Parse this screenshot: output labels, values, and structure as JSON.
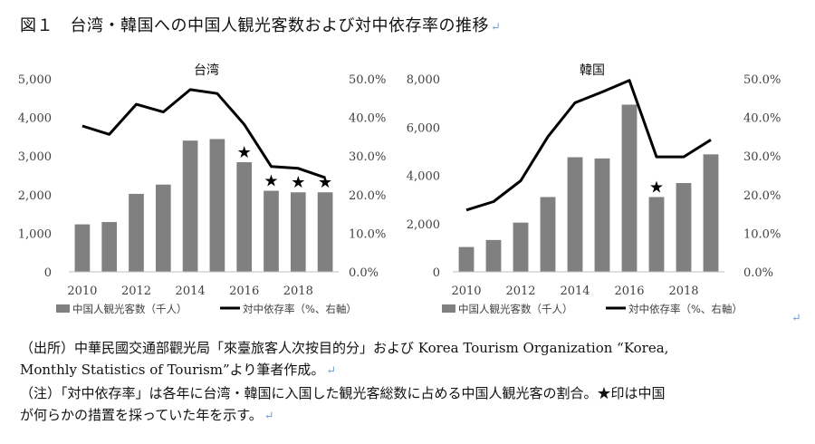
{
  "figure": {
    "title": "図１　台湾・韓国への中国人観光客数および対中依存率の推移",
    "return_mark": "↵"
  },
  "notes": {
    "source_line1": "（出所）中華民國交通部觀光局「來臺旅客人次按目的分」および Korea Tourism Organization “Korea,",
    "source_line2": "Monthly Statistics of Tourism”より筆者作成。",
    "note_line1": "（注）「対中依存率」は各年に台湾・韓国に入国した観光客総数に占める中国人観光客の割合。★印は中国",
    "note_line2": "が何らかの措置を採っていた年を示す。"
  },
  "colors": {
    "bar": "#808080",
    "line": "#000000",
    "text": "#404040"
  },
  "chart_data": [
    {
      "type": "bar+line",
      "title": "台湾",
      "x": [
        2010,
        2011,
        2012,
        2013,
        2014,
        2015,
        2016,
        2017,
        2018,
        2019
      ],
      "xticks": [
        "2010",
        "2012",
        "2014",
        "2016",
        "2018"
      ],
      "y_left_ticks": [
        "0",
        "1,000",
        "2,000",
        "3,000",
        "4,000",
        "5,000"
      ],
      "y_right_ticks": [
        "0.0%",
        "10.0%",
        "20.0%",
        "30.0%",
        "40.0%",
        "50.0%"
      ],
      "ylim_left": [
        0,
        5000
      ],
      "ylim_right": [
        0,
        50
      ],
      "series": [
        {
          "name": "中国人観光客数（千人）",
          "kind": "bar",
          "values": [
            1230,
            1290,
            2020,
            2260,
            3400,
            3440,
            2840,
            2100,
            2060,
            2060
          ]
        },
        {
          "name": "対中依存率（%、右軸）",
          "kind": "line",
          "values": [
            37.8,
            35.6,
            43.4,
            41.4,
            47.2,
            46.2,
            38.2,
            27.3,
            26.8,
            24.4
          ]
        }
      ],
      "star_years": [
        2016,
        2017,
        2018,
        2019
      ],
      "star_symbol": "★",
      "legend": "bottom"
    },
    {
      "type": "bar+line",
      "title": "韓国",
      "x": [
        2010,
        2011,
        2012,
        2013,
        2014,
        2015,
        2016,
        2017,
        2018,
        2019
      ],
      "xticks": [
        "2010",
        "2012",
        "2014",
        "2016",
        "2018"
      ],
      "y_left_ticks": [
        "0",
        "2,000",
        "4,000",
        "6,000",
        "8,000"
      ],
      "y_right_ticks": [
        "0.0%",
        "10.0%",
        "20.0%",
        "30.0%",
        "40.0%",
        "50.0%"
      ],
      "ylim_left": [
        0,
        8000
      ],
      "ylim_right": [
        0,
        50
      ],
      "series": [
        {
          "name": "中国人観光客数（千人）",
          "kind": "bar",
          "values": [
            1030,
            1320,
            2040,
            3100,
            4750,
            4700,
            6930,
            3100,
            3680,
            4870
          ]
        },
        {
          "name": "対中依存率（%、右軸）",
          "kind": "line",
          "values": [
            16.0,
            18.2,
            23.6,
            35.0,
            43.8,
            46.6,
            49.6,
            29.8,
            29.8,
            34.2
          ]
        }
      ],
      "star_years": [
        2017
      ],
      "star_symbol": "★",
      "legend": "bottom"
    }
  ]
}
